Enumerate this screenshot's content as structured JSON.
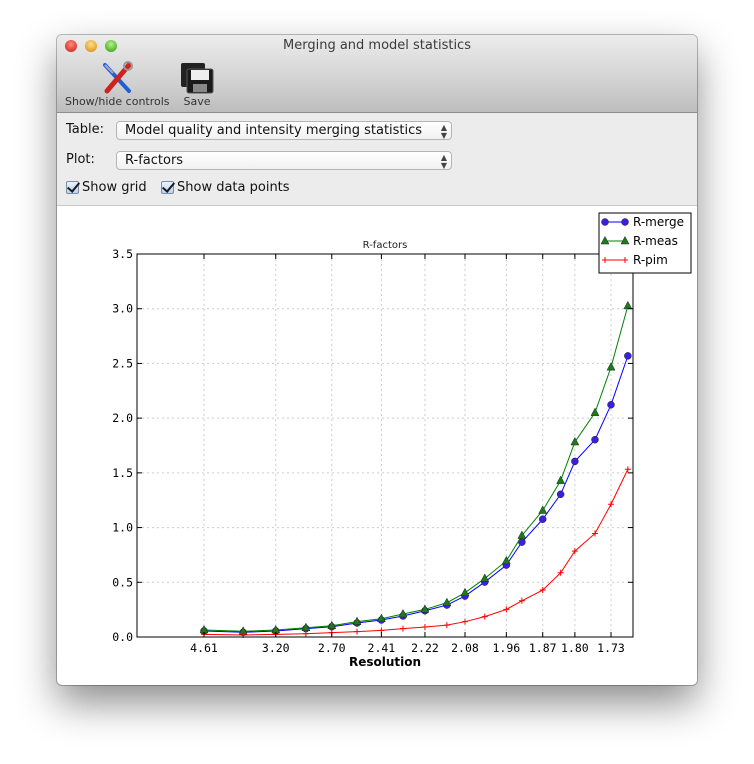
{
  "window": {
    "title": "Merging and model statistics"
  },
  "toolbar": {
    "show_hide_label": "Show/hide controls",
    "save_label": "Save"
  },
  "controls": {
    "table_label": "Table:",
    "table_value": "Model quality and intensity merging statistics",
    "plot_label": "Plot:",
    "plot_value": "R-factors",
    "show_grid_label": "Show grid",
    "show_grid_checked": true,
    "show_points_label": "Show data points",
    "show_points_checked": true
  },
  "chart_data": {
    "type": "line",
    "title": "R-factors",
    "xlabel": "Resolution",
    "ylabel": "",
    "x_scale": "1/d^2 (labels show resolution d)",
    "x": [
      4.61,
      3.66,
      3.2,
      2.9,
      2.7,
      2.54,
      2.41,
      2.31,
      2.22,
      2.14,
      2.08,
      2.02,
      1.96,
      1.92,
      1.87,
      1.83,
      1.8,
      1.76,
      1.73,
      1.7
    ],
    "x_tick_labels": [
      "4.61",
      "3.20",
      "2.70",
      "2.41",
      "2.22",
      "2.08",
      "1.96",
      "1.87",
      "1.80",
      "1.73"
    ],
    "ylim": [
      0,
      3.5
    ],
    "y_tick_labels": [
      "0.0",
      "0.5",
      "1.0",
      "1.5",
      "2.0",
      "2.5",
      "3.0",
      "3.5"
    ],
    "grid": true,
    "legend_position": "top-right",
    "series": [
      {
        "name": "R-merge",
        "color": "#0000ff",
        "marker": "circle",
        "marker_color": "#3a1fe0",
        "values": [
          0.055,
          0.043,
          0.055,
          0.076,
          0.094,
          0.128,
          0.155,
          0.192,
          0.24,
          0.292,
          0.374,
          0.502,
          0.657,
          0.867,
          1.076,
          1.304,
          1.605,
          1.803,
          2.122,
          2.569
        ]
      },
      {
        "name": "R-meas",
        "color": "#008000",
        "marker": "triangle",
        "marker_color": "#1d7a1d",
        "values": [
          0.064,
          0.052,
          0.064,
          0.085,
          0.103,
          0.14,
          0.167,
          0.21,
          0.252,
          0.313,
          0.404,
          0.535,
          0.696,
          0.927,
          1.156,
          1.429,
          1.782,
          2.05,
          2.466,
          3.026
        ]
      },
      {
        "name": "R-pim",
        "color": "#ff0000",
        "marker": "plus",
        "marker_color": "#ff0000",
        "values": [
          0.024,
          0.018,
          0.024,
          0.03,
          0.04,
          0.049,
          0.061,
          0.076,
          0.091,
          0.109,
          0.14,
          0.186,
          0.252,
          0.331,
          0.429,
          0.587,
          0.785,
          0.946,
          1.213,
          1.533
        ]
      }
    ]
  }
}
